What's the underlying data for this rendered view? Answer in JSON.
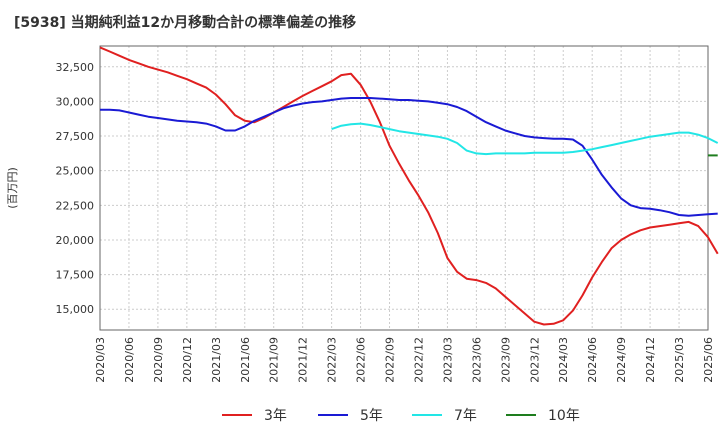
{
  "chart_data": {
    "type": "line",
    "title": "[5938]  当期純利益12か月移動合計の標準偏差の推移",
    "ylabel": "(百万円)",
    "xlabel": "",
    "ylim": [
      13500,
      34000
    ],
    "yticks": [
      15000,
      17500,
      20000,
      22500,
      25000,
      27500,
      30000,
      32500
    ],
    "ytick_labels": [
      "15,000",
      "17,500",
      "20,000",
      "22,500",
      "25,000",
      "27,500",
      "30,000",
      "32,500"
    ],
    "x_start": "2020/03",
    "x_end": "2025/06",
    "xtick_labels": [
      "2020/03",
      "2020/06",
      "2020/09",
      "2020/12",
      "2021/03",
      "2021/06",
      "2021/09",
      "2021/12",
      "2022/03",
      "2022/06",
      "2022/09",
      "2022/12",
      "2023/03",
      "2023/06",
      "2023/09",
      "2023/12",
      "2024/03",
      "2024/06",
      "2024/09",
      "2024/12",
      "2025/03",
      "2025/06"
    ],
    "grid": true,
    "legend_position": "bottom",
    "series": [
      {
        "name": "3年",
        "color": "#e02020",
        "points": [
          [
            "2020/03",
            33900
          ],
          [
            "2020/04",
            33600
          ],
          [
            "2020/05",
            33300
          ],
          [
            "2020/06",
            33000
          ],
          [
            "2020/07",
            32750
          ],
          [
            "2020/08",
            32500
          ],
          [
            "2020/09",
            32300
          ],
          [
            "2020/10",
            32100
          ],
          [
            "2020/11",
            31850
          ],
          [
            "2020/12",
            31600
          ],
          [
            "2021/01",
            31300
          ],
          [
            "2021/02",
            31000
          ],
          [
            "2021/03",
            30500
          ],
          [
            "2021/04",
            29800
          ],
          [
            "2021/05",
            29000
          ],
          [
            "2021/06",
            28600
          ],
          [
            "2021/07",
            28500
          ],
          [
            "2021/08",
            28800
          ],
          [
            "2021/09",
            29200
          ],
          [
            "2021/10",
            29600
          ],
          [
            "2021/11",
            30000
          ],
          [
            "2021/12",
            30400
          ],
          [
            "2022/01",
            30750
          ],
          [
            "2022/02",
            31100
          ],
          [
            "2022/03",
            31450
          ],
          [
            "2022/04",
            31900
          ],
          [
            "2022/05",
            32000
          ],
          [
            "2022/06",
            31200
          ],
          [
            "2022/07",
            30000
          ],
          [
            "2022/08",
            28500
          ],
          [
            "2022/09",
            26800
          ],
          [
            "2022/10",
            25500
          ],
          [
            "2022/11",
            24300
          ],
          [
            "2022/12",
            23200
          ],
          [
            "2023/01",
            22000
          ],
          [
            "2023/02",
            20500
          ],
          [
            "2023/03",
            18700
          ],
          [
            "2023/04",
            17700
          ],
          [
            "2023/05",
            17200
          ],
          [
            "2023/06",
            17100
          ],
          [
            "2023/07",
            16900
          ],
          [
            "2023/08",
            16500
          ],
          [
            "2023/09",
            15900
          ],
          [
            "2023/10",
            15300
          ],
          [
            "2023/11",
            14700
          ],
          [
            "2023/12",
            14100
          ],
          [
            "2024/01",
            13900
          ],
          [
            "2024/02",
            13950
          ],
          [
            "2024/03",
            14200
          ],
          [
            "2024/04",
            14900
          ],
          [
            "2024/05",
            16000
          ],
          [
            "2024/06",
            17300
          ],
          [
            "2024/07",
            18400
          ],
          [
            "2024/08",
            19400
          ],
          [
            "2024/09",
            20000
          ],
          [
            "2024/10",
            20400
          ],
          [
            "2024/11",
            20700
          ],
          [
            "2024/12",
            20900
          ],
          [
            "2025/01",
            21000
          ],
          [
            "2025/02",
            21100
          ],
          [
            "2025/03",
            21200
          ],
          [
            "2025/04",
            21300
          ],
          [
            "2025/05",
            21000
          ],
          [
            "2025/06",
            20200
          ],
          [
            "2025/07",
            19000
          ]
        ]
      },
      {
        "name": "5年",
        "color": "#1a1ad4",
        "points": [
          [
            "2020/03",
            29400
          ],
          [
            "2020/04",
            29400
          ],
          [
            "2020/05",
            29350
          ],
          [
            "2020/06",
            29200
          ],
          [
            "2020/07",
            29050
          ],
          [
            "2020/08",
            28900
          ],
          [
            "2020/09",
            28800
          ],
          [
            "2020/10",
            28700
          ],
          [
            "2020/11",
            28600
          ],
          [
            "2020/12",
            28550
          ],
          [
            "2021/01",
            28500
          ],
          [
            "2021/02",
            28400
          ],
          [
            "2021/03",
            28200
          ],
          [
            "2021/04",
            27900
          ],
          [
            "2021/05",
            27900
          ],
          [
            "2021/06",
            28200
          ],
          [
            "2021/07",
            28600
          ],
          [
            "2021/08",
            28900
          ],
          [
            "2021/09",
            29200
          ],
          [
            "2021/10",
            29500
          ],
          [
            "2021/11",
            29700
          ],
          [
            "2021/12",
            29850
          ],
          [
            "2022/01",
            29950
          ],
          [
            "2022/02",
            30000
          ],
          [
            "2022/03",
            30100
          ],
          [
            "2022/04",
            30200
          ],
          [
            "2022/05",
            30250
          ],
          [
            "2022/06",
            30250
          ],
          [
            "2022/07",
            30250
          ],
          [
            "2022/08",
            30200
          ],
          [
            "2022/09",
            30150
          ],
          [
            "2022/10",
            30100
          ],
          [
            "2022/11",
            30100
          ],
          [
            "2022/12",
            30050
          ],
          [
            "2023/01",
            30000
          ],
          [
            "2023/02",
            29900
          ],
          [
            "2023/03",
            29800
          ],
          [
            "2023/04",
            29600
          ],
          [
            "2023/05",
            29300
          ],
          [
            "2023/06",
            28900
          ],
          [
            "2023/07",
            28500
          ],
          [
            "2023/08",
            28200
          ],
          [
            "2023/09",
            27900
          ],
          [
            "2023/10",
            27700
          ],
          [
            "2023/11",
            27500
          ],
          [
            "2023/12",
            27400
          ],
          [
            "2024/01",
            27350
          ],
          [
            "2024/02",
            27300
          ],
          [
            "2024/03",
            27300
          ],
          [
            "2024/04",
            27250
          ],
          [
            "2024/05",
            26800
          ],
          [
            "2024/06",
            25800
          ],
          [
            "2024/07",
            24700
          ],
          [
            "2024/08",
            23800
          ],
          [
            "2024/09",
            23000
          ],
          [
            "2024/10",
            22500
          ],
          [
            "2024/11",
            22300
          ],
          [
            "2024/12",
            22250
          ],
          [
            "2025/01",
            22150
          ],
          [
            "2025/02",
            22000
          ],
          [
            "2025/03",
            21800
          ],
          [
            "2025/04",
            21750
          ],
          [
            "2025/05",
            21800
          ],
          [
            "2025/06",
            21850
          ],
          [
            "2025/07",
            21900
          ]
        ]
      },
      {
        "name": "7年",
        "color": "#22e6e6",
        "points": [
          [
            "2022/03",
            28000
          ],
          [
            "2022/04",
            28250
          ],
          [
            "2022/05",
            28350
          ],
          [
            "2022/06",
            28400
          ],
          [
            "2022/07",
            28300
          ],
          [
            "2022/08",
            28150
          ],
          [
            "2022/09",
            28000
          ],
          [
            "2022/10",
            27850
          ],
          [
            "2022/11",
            27750
          ],
          [
            "2022/12",
            27650
          ],
          [
            "2023/01",
            27550
          ],
          [
            "2023/02",
            27450
          ],
          [
            "2023/03",
            27300
          ],
          [
            "2023/04",
            27000
          ],
          [
            "2023/05",
            26450
          ],
          [
            "2023/06",
            26250
          ],
          [
            "2023/07",
            26200
          ],
          [
            "2023/08",
            26250
          ],
          [
            "2023/09",
            26250
          ],
          [
            "2023/10",
            26250
          ],
          [
            "2023/11",
            26250
          ],
          [
            "2023/12",
            26300
          ],
          [
            "2024/01",
            26300
          ],
          [
            "2024/02",
            26300
          ],
          [
            "2024/03",
            26300
          ],
          [
            "2024/04",
            26350
          ],
          [
            "2024/05",
            26450
          ],
          [
            "2024/06",
            26550
          ],
          [
            "2024/07",
            26700
          ],
          [
            "2024/08",
            26850
          ],
          [
            "2024/09",
            27000
          ],
          [
            "2024/10",
            27150
          ],
          [
            "2024/11",
            27300
          ],
          [
            "2024/12",
            27450
          ],
          [
            "2025/01",
            27550
          ],
          [
            "2025/02",
            27650
          ],
          [
            "2025/03",
            27750
          ],
          [
            "2025/04",
            27750
          ],
          [
            "2025/05",
            27600
          ],
          [
            "2025/06",
            27350
          ],
          [
            "2025/07",
            27000
          ]
        ]
      },
      {
        "name": "10年",
        "color": "#1e7d1e",
        "points": [
          [
            "2025/06",
            26100
          ],
          [
            "2025/07",
            26100
          ]
        ]
      }
    ]
  }
}
